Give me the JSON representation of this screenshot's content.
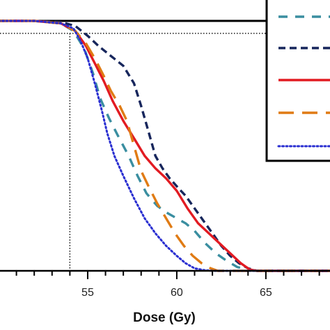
{
  "chart_data": {
    "type": "line",
    "title": "",
    "xlabel": "Dose (Gy)",
    "ylabel": "",
    "xlim": [
      50.0,
      68.6
    ],
    "ylim": [
      0,
      100
    ],
    "grid": false,
    "legend_position": "top-right",
    "x_ticks": [
      55,
      60,
      65
    ],
    "reference_lines": [
      {
        "axis": "x",
        "value": 54.0,
        "style": "dotted"
      },
      {
        "axis": "y",
        "value": 95,
        "style": "dotted"
      },
      {
        "axis": "y",
        "value": 100,
        "style": "solid"
      }
    ],
    "series": [
      {
        "color": "#3a8ea0",
        "style": "dashed-short",
        "x": [
          50.0,
          52.0,
          53.5,
          54.2,
          54.8,
          55.3,
          55.7,
          56.2,
          56.7,
          57.3,
          57.8,
          58.3,
          58.9,
          59.5,
          60.0,
          60.5,
          61.0,
          61.6,
          62.2,
          62.8,
          63.4,
          64.0,
          64.5,
          65.5,
          68.6
        ],
        "y": [
          100,
          100,
          99,
          96,
          89,
          79,
          69,
          61,
          54,
          46,
          38,
          31,
          26,
          23,
          21,
          19,
          16,
          11,
          7,
          4,
          1.5,
          0.5,
          0,
          0,
          0
        ]
      },
      {
        "color": "#17265c",
        "style": "dashed",
        "x": [
          50.0,
          52.0,
          53.5,
          54.3,
          55.0,
          55.6,
          56.3,
          57.0,
          57.6,
          58.0,
          58.4,
          58.8,
          59.2,
          59.6,
          60.1,
          60.5,
          61.0,
          61.5,
          62.0,
          62.5,
          63.0,
          63.5,
          64.0,
          64.5,
          65.5,
          68.6
        ],
        "y": [
          100,
          100,
          99.5,
          98,
          94,
          90,
          86,
          82,
          75,
          66,
          56,
          46,
          41,
          37,
          33,
          30,
          25,
          20,
          15,
          10,
          6,
          3,
          1,
          0,
          0,
          0
        ]
      },
      {
        "color": "#e21b22",
        "style": "solid",
        "x": [
          50.0,
          52.0,
          53.5,
          54.3,
          54.9,
          55.4,
          55.9,
          56.4,
          57.0,
          57.6,
          58.2,
          58.8,
          59.4,
          60.0,
          60.6,
          61.2,
          61.8,
          62.4,
          63.0,
          63.6,
          64.1,
          64.5,
          65.5,
          68.6
        ],
        "y": [
          100,
          100,
          99,
          96,
          90,
          83,
          76,
          68,
          60,
          53,
          46,
          41,
          37,
          32,
          25,
          19,
          15,
          11,
          7,
          3,
          0.5,
          0,
          0,
          0
        ]
      },
      {
        "color": "#e07b14",
        "style": "dashed-long",
        "x": [
          50.0,
          52.0,
          53.5,
          54.3,
          54.9,
          55.4,
          55.9,
          56.3,
          56.8,
          57.2,
          57.6,
          58.0,
          58.4,
          58.9,
          59.4,
          59.9,
          60.4,
          60.9,
          61.4,
          61.9,
          62.3,
          63.0,
          68.6
        ],
        "y": [
          100,
          100,
          99,
          96,
          91,
          85,
          78,
          72,
          66,
          60,
          50,
          40,
          34,
          27,
          21,
          15,
          10,
          6,
          3,
          1,
          0,
          0,
          0
        ]
      },
      {
        "color": "#2a2fd1",
        "style": "dotted",
        "x": [
          50.0,
          52.0,
          53.5,
          54.2,
          54.6,
          55.0,
          55.4,
          55.8,
          56.1,
          56.5,
          57.0,
          57.6,
          58.2,
          58.8,
          59.4,
          60.0,
          60.5,
          61.0,
          61.5,
          62.0,
          68.6
        ],
        "y": [
          100,
          100,
          99,
          97,
          92,
          85,
          75,
          64,
          55,
          46,
          38,
          29,
          21,
          15,
          10,
          6,
          3,
          1,
          0.3,
          0,
          0
        ]
      }
    ]
  }
}
